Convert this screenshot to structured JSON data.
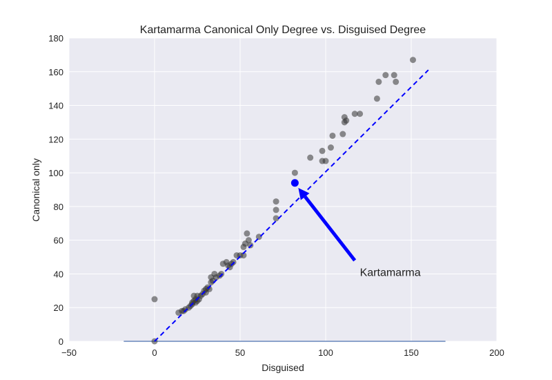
{
  "chart_data": {
    "type": "scatter",
    "title": "Kartamarma Canonical Only Degree vs. Disguised Degree",
    "xlabel": "Disguised",
    "ylabel": "Canonical only",
    "xlim": [
      -50,
      200
    ],
    "ylim": [
      0,
      180
    ],
    "xticks": [
      -50,
      0,
      50,
      100,
      150,
      200
    ],
    "yticks": [
      0,
      20,
      40,
      60,
      80,
      100,
      120,
      140,
      160,
      180
    ],
    "grid": true,
    "colors": {
      "background": "#eaeaf2",
      "grid": "#ffffff",
      "points": "#333333",
      "highlight": "#0000ff",
      "reference_line": "#0000ff",
      "baseline": "#4c72b0"
    },
    "points": [
      {
        "x": 0,
        "y": 25
      },
      {
        "x": 0,
        "y": 0
      },
      {
        "x": 14,
        "y": 17
      },
      {
        "x": 16,
        "y": 18
      },
      {
        "x": 17,
        "y": 18
      },
      {
        "x": 18,
        "y": 19
      },
      {
        "x": 20,
        "y": 20
      },
      {
        "x": 21,
        "y": 21
      },
      {
        "x": 22,
        "y": 22
      },
      {
        "x": 22,
        "y": 23
      },
      {
        "x": 23,
        "y": 24
      },
      {
        "x": 23,
        "y": 27
      },
      {
        "x": 24,
        "y": 25
      },
      {
        "x": 24,
        "y": 23
      },
      {
        "x": 25,
        "y": 24
      },
      {
        "x": 25,
        "y": 27
      },
      {
        "x": 26,
        "y": 25
      },
      {
        "x": 27,
        "y": 27
      },
      {
        "x": 28,
        "y": 28
      },
      {
        "x": 29,
        "y": 30
      },
      {
        "x": 30,
        "y": 31
      },
      {
        "x": 30,
        "y": 29
      },
      {
        "x": 31,
        "y": 32
      },
      {
        "x": 32,
        "y": 31
      },
      {
        "x": 33,
        "y": 35
      },
      {
        "x": 33,
        "y": 38
      },
      {
        "x": 34,
        "y": 36
      },
      {
        "x": 35,
        "y": 40
      },
      {
        "x": 36,
        "y": 38
      },
      {
        "x": 38,
        "y": 39
      },
      {
        "x": 39,
        "y": 40
      },
      {
        "x": 40,
        "y": 46
      },
      {
        "x": 42,
        "y": 47
      },
      {
        "x": 43,
        "y": 45
      },
      {
        "x": 44,
        "y": 44
      },
      {
        "x": 45,
        "y": 46
      },
      {
        "x": 46,
        "y": 47
      },
      {
        "x": 48,
        "y": 51
      },
      {
        "x": 50,
        "y": 51
      },
      {
        "x": 52,
        "y": 56
      },
      {
        "x": 52,
        "y": 51
      },
      {
        "x": 53,
        "y": 58
      },
      {
        "x": 54,
        "y": 64
      },
      {
        "x": 55,
        "y": 60
      },
      {
        "x": 56,
        "y": 57
      },
      {
        "x": 61,
        "y": 62
      },
      {
        "x": 71,
        "y": 73
      },
      {
        "x": 71,
        "y": 78
      },
      {
        "x": 71,
        "y": 83
      },
      {
        "x": 82,
        "y": 100
      },
      {
        "x": 91,
        "y": 109
      },
      {
        "x": 98,
        "y": 113
      },
      {
        "x": 98,
        "y": 107
      },
      {
        "x": 100,
        "y": 107
      },
      {
        "x": 103,
        "y": 115
      },
      {
        "x": 104,
        "y": 122
      },
      {
        "x": 110,
        "y": 123
      },
      {
        "x": 111,
        "y": 133
      },
      {
        "x": 111,
        "y": 130
      },
      {
        "x": 112,
        "y": 131
      },
      {
        "x": 117,
        "y": 135
      },
      {
        "x": 120,
        "y": 135
      },
      {
        "x": 130,
        "y": 144
      },
      {
        "x": 131,
        "y": 154
      },
      {
        "x": 135,
        "y": 158
      },
      {
        "x": 140,
        "y": 158
      },
      {
        "x": 141,
        "y": 154
      },
      {
        "x": 151,
        "y": 167
      }
    ],
    "highlight": {
      "label": "Kartamarma",
      "x": 82,
      "y": 94
    },
    "reference_line": {
      "from": [
        0,
        0
      ],
      "to": [
        160,
        161
      ]
    },
    "baseline": {
      "from": [
        -18,
        0
      ],
      "to": [
        170,
        0
      ]
    },
    "annotation": {
      "text": "Kartamarma",
      "text_x": 120,
      "text_y": 40,
      "arrow_from": [
        117,
        48
      ],
      "arrow_to": [
        84,
        91
      ]
    }
  }
}
